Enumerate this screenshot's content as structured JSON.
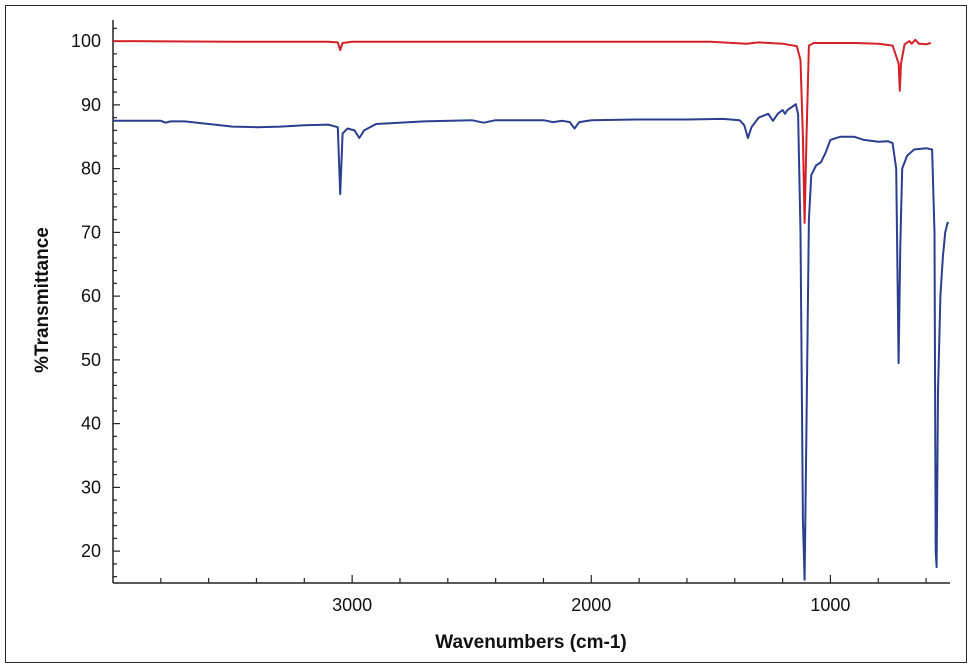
{
  "chart_data": {
    "type": "line",
    "title": "",
    "xlabel": "Wavenumbers (cm-1)",
    "ylabel": "%Transmittance",
    "xlim": [
      4000,
      500
    ],
    "ylim": [
      15,
      103
    ],
    "x_reversed": true,
    "x_ticks": [
      3000,
      2000,
      1000
    ],
    "y_ticks": [
      100,
      90,
      80,
      70,
      60,
      50,
      40,
      30,
      20
    ],
    "grid": false,
    "legend": "none",
    "series": [
      {
        "color": "#d42027",
        "points": [
          [
            4000,
            100.0
          ],
          [
            3500,
            99.9
          ],
          [
            3100,
            99.9
          ],
          [
            3060,
            99.8
          ],
          [
            3050,
            98.6
          ],
          [
            3040,
            99.7
          ],
          [
            3000,
            99.9
          ],
          [
            2500,
            99.9
          ],
          [
            2000,
            99.9
          ],
          [
            1500,
            99.9
          ],
          [
            1350,
            99.6
          ],
          [
            1300,
            99.8
          ],
          [
            1200,
            99.6
          ],
          [
            1140,
            99.2
          ],
          [
            1125,
            97.0
          ],
          [
            1115,
            85.0
          ],
          [
            1108,
            71.5
          ],
          [
            1100,
            85.0
          ],
          [
            1090,
            99.3
          ],
          [
            1070,
            99.7
          ],
          [
            1000,
            99.7
          ],
          [
            900,
            99.7
          ],
          [
            800,
            99.6
          ],
          [
            740,
            99.3
          ],
          [
            715,
            96.5
          ],
          [
            710,
            92.2
          ],
          [
            705,
            96.5
          ],
          [
            690,
            99.5
          ],
          [
            670,
            100.0
          ],
          [
            660,
            99.6
          ],
          [
            645,
            100.2
          ],
          [
            630,
            99.6
          ],
          [
            600,
            99.5
          ],
          [
            580,
            99.7
          ]
        ]
      },
      {
        "color": "#2a3f8f",
        "points": [
          [
            4000,
            87.5
          ],
          [
            3800,
            87.5
          ],
          [
            3780,
            87.2
          ],
          [
            3760,
            87.4
          ],
          [
            3700,
            87.4
          ],
          [
            3600,
            87.0
          ],
          [
            3500,
            86.6
          ],
          [
            3400,
            86.5
          ],
          [
            3300,
            86.6
          ],
          [
            3200,
            86.8
          ],
          [
            3100,
            86.9
          ],
          [
            3060,
            86.5
          ],
          [
            3050,
            76.0
          ],
          [
            3040,
            85.5
          ],
          [
            3020,
            86.3
          ],
          [
            2990,
            86.0
          ],
          [
            2970,
            84.8
          ],
          [
            2950,
            86.0
          ],
          [
            2900,
            87.0
          ],
          [
            2700,
            87.4
          ],
          [
            2500,
            87.6
          ],
          [
            2450,
            87.2
          ],
          [
            2400,
            87.6
          ],
          [
            2200,
            87.6
          ],
          [
            2160,
            87.3
          ],
          [
            2120,
            87.5
          ],
          [
            2090,
            87.3
          ],
          [
            2070,
            86.3
          ],
          [
            2050,
            87.3
          ],
          [
            2000,
            87.6
          ],
          [
            1800,
            87.7
          ],
          [
            1600,
            87.7
          ],
          [
            1450,
            87.8
          ],
          [
            1380,
            87.6
          ],
          [
            1360,
            86.8
          ],
          [
            1345,
            84.8
          ],
          [
            1330,
            86.5
          ],
          [
            1300,
            88.0
          ],
          [
            1260,
            88.6
          ],
          [
            1240,
            87.5
          ],
          [
            1220,
            88.6
          ],
          [
            1200,
            89.2
          ],
          [
            1190,
            88.6
          ],
          [
            1180,
            89.2
          ],
          [
            1160,
            89.7
          ],
          [
            1145,
            90.1
          ],
          [
            1135,
            88.5
          ],
          [
            1125,
            70.0
          ],
          [
            1115,
            25.0
          ],
          [
            1108,
            15.5
          ],
          [
            1100,
            40.0
          ],
          [
            1090,
            72.0
          ],
          [
            1080,
            79.0
          ],
          [
            1060,
            80.5
          ],
          [
            1040,
            81.0
          ],
          [
            1020,
            82.5
          ],
          [
            1000,
            84.5
          ],
          [
            960,
            85.0
          ],
          [
            900,
            85.0
          ],
          [
            860,
            84.5
          ],
          [
            800,
            84.2
          ],
          [
            760,
            84.3
          ],
          [
            740,
            84.0
          ],
          [
            725,
            80.0
          ],
          [
            715,
            49.5
          ],
          [
            708,
            68.0
          ],
          [
            700,
            80.0
          ],
          [
            680,
            82.0
          ],
          [
            650,
            83.0
          ],
          [
            600,
            83.2
          ],
          [
            575,
            83.0
          ],
          [
            565,
            70.0
          ],
          [
            560,
            20.0
          ],
          [
            556,
            17.5
          ],
          [
            550,
            45.0
          ],
          [
            540,
            60.0
          ],
          [
            530,
            66.0
          ],
          [
            520,
            70.0
          ],
          [
            510,
            71.5
          ],
          [
            505,
            71.5
          ]
        ]
      }
    ]
  }
}
